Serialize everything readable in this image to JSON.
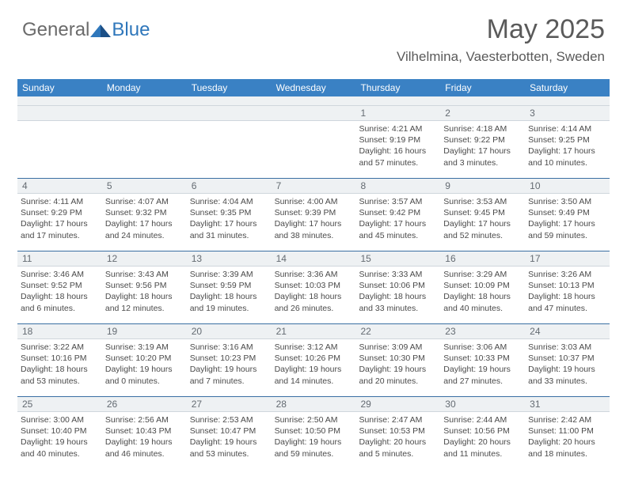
{
  "logo": {
    "part1": "General",
    "part2": "Blue"
  },
  "title": "May 2025",
  "subtitle": "Vilhelmina, Vaesterbotten, Sweden",
  "colors": {
    "header_bg": "#3a81c4",
    "header_text": "#ffffff",
    "daybar_bg": "#eef1f3",
    "daybar_border_top": "#3a6fa3",
    "body_text": "#4a4a4a",
    "logo_gray": "#6b6b6b",
    "logo_blue": "#2f77bb"
  },
  "typography": {
    "title_fontsize": 34,
    "subtitle_fontsize": 17,
    "header_fontsize": 12,
    "cell_fontsize": 10.5
  },
  "day_headers": [
    "Sunday",
    "Monday",
    "Tuesday",
    "Wednesday",
    "Thursday",
    "Friday",
    "Saturday"
  ],
  "weeks": [
    {
      "nums": [
        "",
        "",
        "",
        "",
        "1",
        "2",
        "3"
      ],
      "cells": [
        {
          "lines": []
        },
        {
          "lines": []
        },
        {
          "lines": []
        },
        {
          "lines": []
        },
        {
          "lines": [
            "Sunrise: 4:21 AM",
            "Sunset: 9:19 PM",
            "Daylight: 16 hours",
            "and 57 minutes."
          ]
        },
        {
          "lines": [
            "Sunrise: 4:18 AM",
            "Sunset: 9:22 PM",
            "Daylight: 17 hours",
            "and 3 minutes."
          ]
        },
        {
          "lines": [
            "Sunrise: 4:14 AM",
            "Sunset: 9:25 PM",
            "Daylight: 17 hours",
            "and 10 minutes."
          ]
        }
      ]
    },
    {
      "nums": [
        "4",
        "5",
        "6",
        "7",
        "8",
        "9",
        "10"
      ],
      "cells": [
        {
          "lines": [
            "Sunrise: 4:11 AM",
            "Sunset: 9:29 PM",
            "Daylight: 17 hours",
            "and 17 minutes."
          ]
        },
        {
          "lines": [
            "Sunrise: 4:07 AM",
            "Sunset: 9:32 PM",
            "Daylight: 17 hours",
            "and 24 minutes."
          ]
        },
        {
          "lines": [
            "Sunrise: 4:04 AM",
            "Sunset: 9:35 PM",
            "Daylight: 17 hours",
            "and 31 minutes."
          ]
        },
        {
          "lines": [
            "Sunrise: 4:00 AM",
            "Sunset: 9:39 PM",
            "Daylight: 17 hours",
            "and 38 minutes."
          ]
        },
        {
          "lines": [
            "Sunrise: 3:57 AM",
            "Sunset: 9:42 PM",
            "Daylight: 17 hours",
            "and 45 minutes."
          ]
        },
        {
          "lines": [
            "Sunrise: 3:53 AM",
            "Sunset: 9:45 PM",
            "Daylight: 17 hours",
            "and 52 minutes."
          ]
        },
        {
          "lines": [
            "Sunrise: 3:50 AM",
            "Sunset: 9:49 PM",
            "Daylight: 17 hours",
            "and 59 minutes."
          ]
        }
      ]
    },
    {
      "nums": [
        "11",
        "12",
        "13",
        "14",
        "15",
        "16",
        "17"
      ],
      "cells": [
        {
          "lines": [
            "Sunrise: 3:46 AM",
            "Sunset: 9:52 PM",
            "Daylight: 18 hours",
            "and 6 minutes."
          ]
        },
        {
          "lines": [
            "Sunrise: 3:43 AM",
            "Sunset: 9:56 PM",
            "Daylight: 18 hours",
            "and 12 minutes."
          ]
        },
        {
          "lines": [
            "Sunrise: 3:39 AM",
            "Sunset: 9:59 PM",
            "Daylight: 18 hours",
            "and 19 minutes."
          ]
        },
        {
          "lines": [
            "Sunrise: 3:36 AM",
            "Sunset: 10:03 PM",
            "Daylight: 18 hours",
            "and 26 minutes."
          ]
        },
        {
          "lines": [
            "Sunrise: 3:33 AM",
            "Sunset: 10:06 PM",
            "Daylight: 18 hours",
            "and 33 minutes."
          ]
        },
        {
          "lines": [
            "Sunrise: 3:29 AM",
            "Sunset: 10:09 PM",
            "Daylight: 18 hours",
            "and 40 minutes."
          ]
        },
        {
          "lines": [
            "Sunrise: 3:26 AM",
            "Sunset: 10:13 PM",
            "Daylight: 18 hours",
            "and 47 minutes."
          ]
        }
      ]
    },
    {
      "nums": [
        "18",
        "19",
        "20",
        "21",
        "22",
        "23",
        "24"
      ],
      "cells": [
        {
          "lines": [
            "Sunrise: 3:22 AM",
            "Sunset: 10:16 PM",
            "Daylight: 18 hours",
            "and 53 minutes."
          ]
        },
        {
          "lines": [
            "Sunrise: 3:19 AM",
            "Sunset: 10:20 PM",
            "Daylight: 19 hours",
            "and 0 minutes."
          ]
        },
        {
          "lines": [
            "Sunrise: 3:16 AM",
            "Sunset: 10:23 PM",
            "Daylight: 19 hours",
            "and 7 minutes."
          ]
        },
        {
          "lines": [
            "Sunrise: 3:12 AM",
            "Sunset: 10:26 PM",
            "Daylight: 19 hours",
            "and 14 minutes."
          ]
        },
        {
          "lines": [
            "Sunrise: 3:09 AM",
            "Sunset: 10:30 PM",
            "Daylight: 19 hours",
            "and 20 minutes."
          ]
        },
        {
          "lines": [
            "Sunrise: 3:06 AM",
            "Sunset: 10:33 PM",
            "Daylight: 19 hours",
            "and 27 minutes."
          ]
        },
        {
          "lines": [
            "Sunrise: 3:03 AM",
            "Sunset: 10:37 PM",
            "Daylight: 19 hours",
            "and 33 minutes."
          ]
        }
      ]
    },
    {
      "nums": [
        "25",
        "26",
        "27",
        "28",
        "29",
        "30",
        "31"
      ],
      "cells": [
        {
          "lines": [
            "Sunrise: 3:00 AM",
            "Sunset: 10:40 PM",
            "Daylight: 19 hours",
            "and 40 minutes."
          ]
        },
        {
          "lines": [
            "Sunrise: 2:56 AM",
            "Sunset: 10:43 PM",
            "Daylight: 19 hours",
            "and 46 minutes."
          ]
        },
        {
          "lines": [
            "Sunrise: 2:53 AM",
            "Sunset: 10:47 PM",
            "Daylight: 19 hours",
            "and 53 minutes."
          ]
        },
        {
          "lines": [
            "Sunrise: 2:50 AM",
            "Sunset: 10:50 PM",
            "Daylight: 19 hours",
            "and 59 minutes."
          ]
        },
        {
          "lines": [
            "Sunrise: 2:47 AM",
            "Sunset: 10:53 PM",
            "Daylight: 20 hours",
            "and 5 minutes."
          ]
        },
        {
          "lines": [
            "Sunrise: 2:44 AM",
            "Sunset: 10:56 PM",
            "Daylight: 20 hours",
            "and 11 minutes."
          ]
        },
        {
          "lines": [
            "Sunrise: 2:42 AM",
            "Sunset: 11:00 PM",
            "Daylight: 20 hours",
            "and 18 minutes."
          ]
        }
      ]
    }
  ]
}
